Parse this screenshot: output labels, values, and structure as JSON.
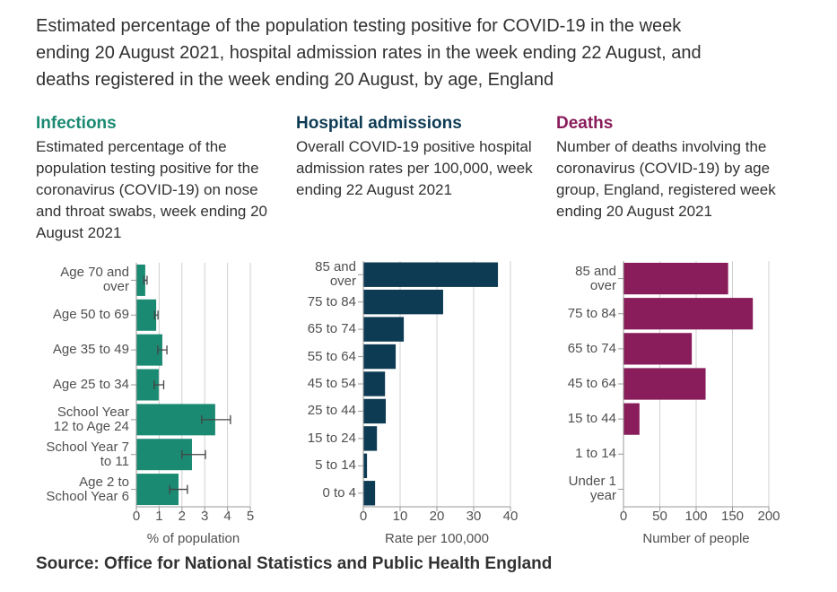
{
  "title": "Estimated percentage of the population testing positive for COVID-19 in the week ending 20 August 2021, hospital admission rates in the week ending 22 August, and deaths registered in the week ending 20 August, by age, England",
  "source": "Source: Office for National Statistics and Public Health England",
  "chart_data": [
    {
      "type": "bar",
      "orientation": "horizontal",
      "title": "Infections",
      "subtitle": "Estimated percentage of the population testing positive for the coronavirus (COVID-19) on nose and throat swabs, week ending 20 August 2021",
      "categories": [
        "Age 70 and over",
        "Age 50 to 69",
        "Age 35 to 49",
        "Age 25 to 34",
        "School Year 12 to Age 24",
        "School Year 7 to 11",
        "Age 2 to School Year 6"
      ],
      "values": [
        0.39,
        0.87,
        1.14,
        0.98,
        3.46,
        2.44,
        1.85
      ],
      "ci_lower": [
        0.33,
        0.8,
        0.94,
        0.78,
        2.87,
        2.0,
        1.46
      ],
      "ci_upper": [
        0.47,
        0.95,
        1.34,
        1.2,
        4.13,
        3.03,
        2.24
      ],
      "color": "#1a8a72",
      "xlim": [
        0,
        5
      ],
      "xticks": [
        0,
        1,
        2,
        3,
        4,
        5
      ],
      "xlabel": "% of population",
      "grid": true
    },
    {
      "type": "bar",
      "orientation": "horizontal",
      "title": "Hospital admissions",
      "subtitle": "Overall COVID-19 positive hospital admission rates per 100,000, week ending 22 August 2021",
      "categories": [
        "85 and over",
        "75 to 84",
        "65 to 74",
        "55 to 64",
        "45 to 54",
        "25 to 44",
        "15 to 24",
        "5 to 14",
        "0 to 4"
      ],
      "values": [
        36.6,
        21.7,
        11.0,
        8.8,
        5.9,
        6.1,
        3.7,
        1.0,
        3.2
      ],
      "color": "#0e3b54",
      "xlim": [
        0,
        40
      ],
      "xticks": [
        0,
        10,
        20,
        30,
        40
      ],
      "xlabel": "Rate per 100,000",
      "grid": true
    },
    {
      "type": "bar",
      "orientation": "horizontal",
      "title": "Deaths",
      "subtitle": "Number of deaths involving the coronavirus (COVID-19) by age group, England, registered week ending 20 August 2021",
      "categories": [
        "85 and over",
        "75 to 84",
        "65 to 74",
        "45 to 64",
        "15 to 44",
        "1 to 14",
        "Under 1 year"
      ],
      "values": [
        144,
        178,
        94,
        113,
        22,
        0,
        0
      ],
      "color": "#891c5a",
      "xlim": [
        0,
        200
      ],
      "xticks": [
        0,
        50,
        100,
        150,
        200
      ],
      "xlabel": "Number of people",
      "grid": true
    }
  ]
}
